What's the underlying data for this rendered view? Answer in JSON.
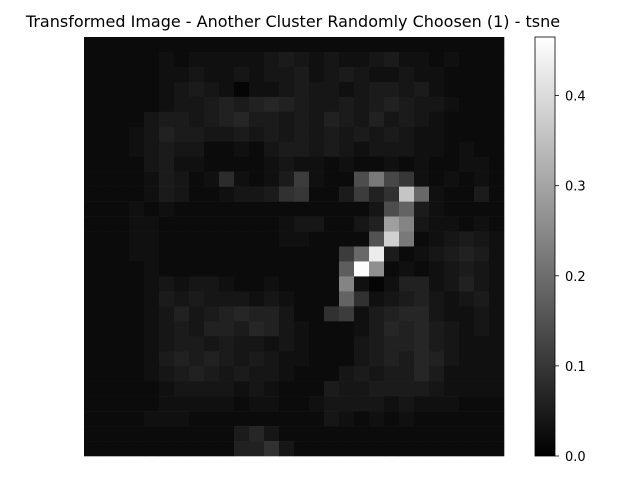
{
  "chart_data": {
    "type": "heatmap",
    "title": "Transformed Image - Another Cluster Randomly Choosen (1) - tsne",
    "colormap": "gray",
    "vmin": 0.0,
    "vmax": 0.465,
    "grid": false,
    "axes_visible": false,
    "colorbar": {
      "position": "right",
      "ticks": [
        0.0,
        0.1,
        0.2,
        0.3,
        0.4
      ],
      "tick_labels": [
        "0.0",
        "0.1",
        "0.2",
        "0.3",
        "0.4"
      ]
    },
    "rows": 28,
    "cols": 28,
    "values": [
      [
        0.02,
        0.02,
        0.02,
        0.02,
        0.02,
        0.02,
        0.02,
        0.02,
        0.02,
        0.02,
        0.02,
        0.02,
        0.02,
        0.02,
        0.02,
        0.02,
        0.02,
        0.02,
        0.02,
        0.02,
        0.02,
        0.02,
        0.02,
        0.02,
        0.02,
        0.02,
        0.02,
        0.02
      ],
      [
        0.02,
        0.02,
        0.02,
        0.02,
        0.02,
        0.03,
        0.02,
        0.03,
        0.03,
        0.03,
        0.03,
        0.03,
        0.04,
        0.05,
        0.04,
        0.03,
        0.04,
        0.03,
        0.03,
        0.04,
        0.05,
        0.03,
        0.03,
        0.02,
        0.03,
        0.02,
        0.02,
        0.02
      ],
      [
        0.02,
        0.02,
        0.02,
        0.02,
        0.02,
        0.03,
        0.03,
        0.04,
        0.03,
        0.03,
        0.04,
        0.03,
        0.04,
        0.04,
        0.05,
        0.03,
        0.04,
        0.05,
        0.04,
        0.03,
        0.03,
        0.04,
        0.03,
        0.03,
        0.02,
        0.02,
        0.02,
        0.02
      ],
      [
        0.02,
        0.02,
        0.02,
        0.02,
        0.02,
        0.03,
        0.04,
        0.05,
        0.04,
        0.03,
        0.01,
        0.03,
        0.03,
        0.04,
        0.05,
        0.04,
        0.04,
        0.03,
        0.04,
        0.05,
        0.05,
        0.04,
        0.05,
        0.03,
        0.02,
        0.02,
        0.02,
        0.02
      ],
      [
        0.02,
        0.02,
        0.02,
        0.02,
        0.02,
        0.03,
        0.04,
        0.04,
        0.05,
        0.06,
        0.05,
        0.06,
        0.07,
        0.06,
        0.05,
        0.04,
        0.04,
        0.05,
        0.04,
        0.05,
        0.06,
        0.05,
        0.04,
        0.04,
        0.03,
        0.02,
        0.02,
        0.02
      ],
      [
        0.02,
        0.02,
        0.02,
        0.02,
        0.04,
        0.05,
        0.05,
        0.04,
        0.05,
        0.06,
        0.07,
        0.05,
        0.05,
        0.04,
        0.05,
        0.04,
        0.06,
        0.05,
        0.04,
        0.06,
        0.04,
        0.05,
        0.04,
        0.03,
        0.02,
        0.02,
        0.02,
        0.02
      ],
      [
        0.02,
        0.02,
        0.02,
        0.03,
        0.04,
        0.06,
        0.05,
        0.05,
        0.04,
        0.04,
        0.05,
        0.04,
        0.05,
        0.04,
        0.05,
        0.04,
        0.05,
        0.04,
        0.05,
        0.04,
        0.05,
        0.04,
        0.03,
        0.03,
        0.02,
        0.02,
        0.02,
        0.02
      ],
      [
        0.02,
        0.02,
        0.02,
        0.03,
        0.04,
        0.05,
        0.04,
        0.04,
        0.02,
        0.02,
        0.03,
        0.02,
        0.04,
        0.05,
        0.05,
        0.04,
        0.05,
        0.04,
        0.03,
        0.04,
        0.04,
        0.04,
        0.03,
        0.03,
        0.02,
        0.03,
        0.02,
        0.02
      ],
      [
        0.02,
        0.02,
        0.02,
        0.02,
        0.04,
        0.05,
        0.03,
        0.03,
        0.02,
        0.02,
        0.02,
        0.02,
        0.03,
        0.04,
        0.03,
        0.03,
        0.02,
        0.03,
        0.02,
        0.02,
        0.03,
        0.02,
        0.03,
        0.02,
        0.02,
        0.03,
        0.03,
        0.02
      ],
      [
        0.02,
        0.02,
        0.02,
        0.02,
        0.03,
        0.05,
        0.04,
        0.02,
        0.03,
        0.08,
        0.03,
        0.02,
        0.03,
        0.05,
        0.11,
        0.03,
        0.02,
        0.02,
        0.14,
        0.22,
        0.13,
        0.1,
        0.03,
        0.02,
        0.03,
        0.02,
        0.03,
        0.02
      ],
      [
        0.02,
        0.02,
        0.02,
        0.02,
        0.03,
        0.05,
        0.04,
        0.02,
        0.02,
        0.03,
        0.04,
        0.04,
        0.05,
        0.09,
        0.1,
        0.02,
        0.02,
        0.05,
        0.11,
        0.06,
        0.09,
        0.36,
        0.19,
        0.03,
        0.02,
        0.02,
        0.05,
        0.02
      ],
      [
        0.02,
        0.02,
        0.02,
        0.03,
        0.02,
        0.03,
        0.02,
        0.02,
        0.02,
        0.02,
        0.02,
        0.02,
        0.02,
        0.02,
        0.02,
        0.02,
        0.02,
        0.02,
        0.02,
        0.04,
        0.14,
        0.18,
        0.05,
        0.03,
        0.02,
        0.02,
        0.02,
        0.02
      ],
      [
        0.02,
        0.02,
        0.02,
        0.03,
        0.03,
        0.02,
        0.02,
        0.02,
        0.02,
        0.02,
        0.02,
        0.02,
        0.02,
        0.03,
        0.04,
        0.04,
        0.02,
        0.02,
        0.04,
        0.06,
        0.29,
        0.24,
        0.04,
        0.03,
        0.03,
        0.02,
        0.03,
        0.02
      ],
      [
        0.02,
        0.02,
        0.02,
        0.03,
        0.03,
        0.02,
        0.02,
        0.02,
        0.02,
        0.02,
        0.02,
        0.02,
        0.02,
        0.03,
        0.03,
        0.02,
        0.02,
        0.02,
        0.02,
        0.15,
        0.38,
        0.22,
        0.02,
        0.03,
        0.04,
        0.05,
        0.04,
        0.03
      ],
      [
        0.02,
        0.02,
        0.02,
        0.03,
        0.03,
        0.02,
        0.02,
        0.02,
        0.02,
        0.02,
        0.02,
        0.02,
        0.02,
        0.02,
        0.02,
        0.02,
        0.02,
        0.11,
        0.19,
        0.43,
        0.05,
        0.02,
        0.03,
        0.04,
        0.05,
        0.06,
        0.05,
        0.03
      ],
      [
        0.02,
        0.02,
        0.02,
        0.02,
        0.03,
        0.02,
        0.02,
        0.02,
        0.02,
        0.02,
        0.02,
        0.02,
        0.02,
        0.02,
        0.02,
        0.02,
        0.02,
        0.17,
        0.46,
        0.26,
        0.02,
        0.03,
        0.02,
        0.03,
        0.04,
        0.05,
        0.04,
        0.03
      ],
      [
        0.02,
        0.02,
        0.02,
        0.02,
        0.03,
        0.04,
        0.03,
        0.04,
        0.04,
        0.03,
        0.02,
        0.02,
        0.03,
        0.02,
        0.02,
        0.02,
        0.02,
        0.24,
        0.03,
        0.01,
        0.03,
        0.06,
        0.06,
        0.03,
        0.04,
        0.06,
        0.04,
        0.03
      ],
      [
        0.02,
        0.02,
        0.02,
        0.02,
        0.03,
        0.05,
        0.04,
        0.05,
        0.04,
        0.04,
        0.04,
        0.03,
        0.04,
        0.03,
        0.02,
        0.02,
        0.02,
        0.18,
        0.09,
        0.03,
        0.04,
        0.05,
        0.06,
        0.04,
        0.03,
        0.04,
        0.05,
        0.03
      ],
      [
        0.02,
        0.02,
        0.02,
        0.02,
        0.03,
        0.04,
        0.06,
        0.04,
        0.05,
        0.06,
        0.07,
        0.06,
        0.06,
        0.04,
        0.02,
        0.02,
        0.09,
        0.11,
        0.03,
        0.05,
        0.06,
        0.07,
        0.07,
        0.04,
        0.03,
        0.03,
        0.04,
        0.03
      ],
      [
        0.02,
        0.02,
        0.02,
        0.02,
        0.03,
        0.04,
        0.05,
        0.04,
        0.06,
        0.06,
        0.05,
        0.07,
        0.06,
        0.04,
        0.03,
        0.02,
        0.02,
        0.02,
        0.03,
        0.05,
        0.07,
        0.06,
        0.07,
        0.05,
        0.04,
        0.03,
        0.04,
        0.03
      ],
      [
        0.02,
        0.02,
        0.02,
        0.02,
        0.03,
        0.04,
        0.05,
        0.05,
        0.04,
        0.05,
        0.04,
        0.04,
        0.03,
        0.04,
        0.03,
        0.02,
        0.02,
        0.02,
        0.04,
        0.05,
        0.06,
        0.06,
        0.07,
        0.05,
        0.04,
        0.03,
        0.03,
        0.03
      ],
      [
        0.02,
        0.02,
        0.02,
        0.02,
        0.03,
        0.05,
        0.06,
        0.05,
        0.06,
        0.05,
        0.04,
        0.05,
        0.04,
        0.03,
        0.03,
        0.02,
        0.02,
        0.02,
        0.04,
        0.05,
        0.06,
        0.05,
        0.07,
        0.06,
        0.04,
        0.03,
        0.03,
        0.03
      ],
      [
        0.02,
        0.02,
        0.02,
        0.02,
        0.03,
        0.04,
        0.05,
        0.06,
        0.05,
        0.04,
        0.05,
        0.04,
        0.04,
        0.03,
        0.02,
        0.02,
        0.02,
        0.04,
        0.05,
        0.04,
        0.05,
        0.05,
        0.07,
        0.05,
        0.03,
        0.03,
        0.03,
        0.03
      ],
      [
        0.02,
        0.02,
        0.02,
        0.02,
        0.02,
        0.03,
        0.04,
        0.04,
        0.04,
        0.04,
        0.03,
        0.04,
        0.03,
        0.02,
        0.02,
        0.02,
        0.05,
        0.04,
        0.04,
        0.05,
        0.05,
        0.05,
        0.05,
        0.04,
        0.03,
        0.03,
        0.03,
        0.03
      ],
      [
        0.02,
        0.02,
        0.02,
        0.02,
        0.02,
        0.03,
        0.03,
        0.03,
        0.03,
        0.03,
        0.02,
        0.03,
        0.03,
        0.02,
        0.02,
        0.03,
        0.04,
        0.04,
        0.04,
        0.04,
        0.03,
        0.04,
        0.03,
        0.03,
        0.03,
        0.02,
        0.02,
        0.02
      ],
      [
        0.02,
        0.02,
        0.02,
        0.02,
        0.03,
        0.03,
        0.03,
        0.02,
        0.02,
        0.02,
        0.02,
        0.02,
        0.02,
        0.02,
        0.02,
        0.02,
        0.04,
        0.03,
        0.02,
        0.03,
        0.02,
        0.03,
        0.02,
        0.02,
        0.02,
        0.02,
        0.02,
        0.02
      ],
      [
        0.02,
        0.02,
        0.02,
        0.02,
        0.02,
        0.02,
        0.02,
        0.02,
        0.02,
        0.02,
        0.05,
        0.07,
        0.04,
        0.02,
        0.02,
        0.02,
        0.02,
        0.02,
        0.02,
        0.02,
        0.02,
        0.02,
        0.02,
        0.02,
        0.02,
        0.02,
        0.02,
        0.02
      ],
      [
        0.02,
        0.02,
        0.02,
        0.02,
        0.02,
        0.02,
        0.02,
        0.02,
        0.02,
        0.02,
        0.06,
        0.06,
        0.09,
        0.04,
        0.02,
        0.02,
        0.02,
        0.02,
        0.02,
        0.02,
        0.02,
        0.02,
        0.02,
        0.02,
        0.02,
        0.02,
        0.02,
        0.02
      ]
    ]
  }
}
